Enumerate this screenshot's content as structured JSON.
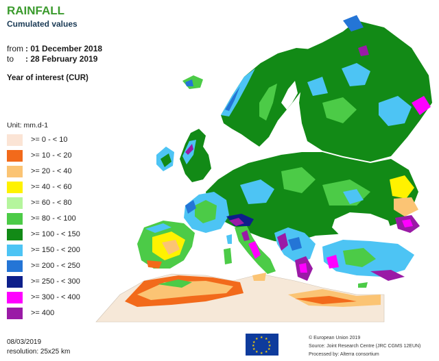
{
  "header": {
    "title": "RAINFALL",
    "subtitle": "Cumulated values",
    "from_label": "from",
    "from_value": ": 01 December 2018",
    "to_label": "to",
    "to_value": ": 28 February 2019",
    "year_of_interest": "Year of interest (CUR)"
  },
  "legend": {
    "unit": "Unit: mm.d-1",
    "items": [
      {
        "label": ">= 0 - < 10",
        "color": "#fbe4d5"
      },
      {
        "label": ">= 10 - < 20",
        "color": "#f26a1b"
      },
      {
        "label": ">= 20 - < 40",
        "color": "#fbc474"
      },
      {
        "label": ">= 40 - < 60",
        "color": "#fff200"
      },
      {
        "label": ">= 60 - < 80",
        "color": "#b5f59d"
      },
      {
        "label": ">= 80 - < 100",
        "color": "#4ccb47"
      },
      {
        "label": ">= 100 - < 150",
        "color": "#128a16"
      },
      {
        "label": ">= 150 - < 200",
        "color": "#4dc4f4"
      },
      {
        "label": ">= 200 - < 250",
        "color": "#2475d6"
      },
      {
        "label": ">= 250 - < 300",
        "color": "#0d1f8a"
      },
      {
        "label": ">= 300 - < 400",
        "color": "#ff00ff"
      },
      {
        "label": ">= 400",
        "color": "#9a1aa6"
      }
    ]
  },
  "map": {
    "land_out_of_scope_color": "#f6e8d8",
    "sea_color": "#ffffff"
  },
  "footer": {
    "date": "08/03/2019",
    "resolution": "resolution: 25x25 km",
    "copyright": "© European Union 2019",
    "source": "Source: Joint Research Centre (JRC CGMS 12EUN)",
    "processed": "Processed by: Alterra consortium"
  }
}
